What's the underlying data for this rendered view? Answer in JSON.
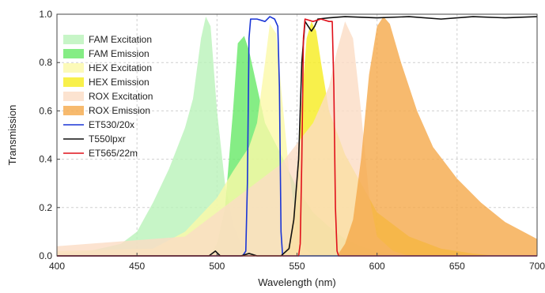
{
  "chart_data": {
    "type": "area",
    "xlabel": "Wavelength (nm)",
    "ylabel": "Transmission",
    "xlim": [
      400,
      700
    ],
    "ylim": [
      0,
      1.0
    ],
    "x_ticks": [
      400,
      450,
      500,
      550,
      600,
      650,
      700
    ],
    "y_ticks": [
      "0.0",
      "0.2",
      "0.4",
      "0.6",
      "0.8",
      "1.0"
    ],
    "grid": "dashed",
    "legend_position": "top-left",
    "series": [
      {
        "name": "FAM Excitation",
        "kind": "area",
        "color": "#b9f2b9",
        "points": [
          [
            400,
            0.01
          ],
          [
            420,
            0.02
          ],
          [
            440,
            0.05
          ],
          [
            450,
            0.1
          ],
          [
            460,
            0.22
          ],
          [
            470,
            0.36
          ],
          [
            480,
            0.53
          ],
          [
            485,
            0.65
          ],
          [
            490,
            0.9
          ],
          [
            493,
            0.99
          ],
          [
            496,
            0.95
          ],
          [
            500,
            0.6
          ],
          [
            505,
            0.3
          ],
          [
            510,
            0.13
          ],
          [
            515,
            0.05
          ],
          [
            520,
            0.02
          ],
          [
            530,
            0.0
          ]
        ]
      },
      {
        "name": "FAM Emission",
        "kind": "area",
        "color": "#66e866",
        "points": [
          [
            495,
            0.0
          ],
          [
            500,
            0.05
          ],
          [
            505,
            0.2
          ],
          [
            510,
            0.6
          ],
          [
            513,
            0.88
          ],
          [
            517,
            0.91
          ],
          [
            520,
            0.85
          ],
          [
            525,
            0.7
          ],
          [
            530,
            0.55
          ],
          [
            540,
            0.42
          ],
          [
            550,
            0.28
          ],
          [
            560,
            0.18
          ],
          [
            570,
            0.12
          ],
          [
            580,
            0.07
          ],
          [
            590,
            0.04
          ],
          [
            600,
            0.02
          ],
          [
            620,
            0.0
          ]
        ]
      },
      {
        "name": "HEX Excitation",
        "kind": "area",
        "color": "#fbf9a8",
        "points": [
          [
            400,
            0.02
          ],
          [
            460,
            0.03
          ],
          [
            480,
            0.1
          ],
          [
            500,
            0.24
          ],
          [
            510,
            0.35
          ],
          [
            520,
            0.45
          ],
          [
            525,
            0.55
          ],
          [
            530,
            0.8
          ],
          [
            533,
            0.96
          ],
          [
            537,
            0.92
          ],
          [
            540,
            0.7
          ],
          [
            545,
            0.35
          ],
          [
            550,
            0.12
          ],
          [
            555,
            0.03
          ],
          [
            560,
            0.0
          ]
        ]
      },
      {
        "name": "HEX Emission",
        "kind": "area",
        "color": "#f6ec1e",
        "points": [
          [
            540,
            0.0
          ],
          [
            545,
            0.05
          ],
          [
            550,
            0.3
          ],
          [
            553,
            0.65
          ],
          [
            556,
            0.9
          ],
          [
            559,
            0.97
          ],
          [
            562,
            0.93
          ],
          [
            565,
            0.8
          ],
          [
            570,
            0.6
          ],
          [
            580,
            0.42
          ],
          [
            590,
            0.3
          ],
          [
            600,
            0.18
          ],
          [
            620,
            0.08
          ],
          [
            640,
            0.03
          ],
          [
            660,
            0.01
          ],
          [
            675,
            0.0
          ]
        ]
      },
      {
        "name": "ROX Excitation",
        "kind": "area",
        "color": "#fbdcc4",
        "points": [
          [
            400,
            0.04
          ],
          [
            480,
            0.08
          ],
          [
            500,
            0.18
          ],
          [
            520,
            0.28
          ],
          [
            540,
            0.38
          ],
          [
            560,
            0.55
          ],
          [
            570,
            0.7
          ],
          [
            575,
            0.85
          ],
          [
            580,
            0.97
          ],
          [
            585,
            0.9
          ],
          [
            590,
            0.6
          ],
          [
            595,
            0.25
          ],
          [
            600,
            0.08
          ],
          [
            610,
            0.02
          ],
          [
            620,
            0.0
          ]
        ]
      },
      {
        "name": "ROX Emission",
        "kind": "area",
        "color": "#f5a94a",
        "points": [
          [
            575,
            0.0
          ],
          [
            580,
            0.05
          ],
          [
            585,
            0.15
          ],
          [
            590,
            0.4
          ],
          [
            595,
            0.75
          ],
          [
            600,
            0.95
          ],
          [
            604,
            0.99
          ],
          [
            608,
            0.96
          ],
          [
            615,
            0.8
          ],
          [
            625,
            0.6
          ],
          [
            635,
            0.45
          ],
          [
            650,
            0.32
          ],
          [
            665,
            0.22
          ],
          [
            680,
            0.14
          ],
          [
            700,
            0.07
          ]
        ]
      },
      {
        "name": "ET530/20x",
        "kind": "line",
        "color": "#1a35d6",
        "points": [
          [
            400,
            0.0
          ],
          [
            516,
            0.0
          ],
          [
            518,
            0.02
          ],
          [
            519,
            0.3
          ],
          [
            520,
            0.9
          ],
          [
            521,
            0.98
          ],
          [
            525,
            0.98
          ],
          [
            530,
            0.97
          ],
          [
            533,
            0.99
          ],
          [
            536,
            0.98
          ],
          [
            538,
            0.95
          ],
          [
            539,
            0.7
          ],
          [
            540,
            0.1
          ],
          [
            541,
            0.0
          ],
          [
            700,
            0.0
          ]
        ]
      },
      {
        "name": "T550lpxr",
        "kind": "line",
        "color": "#111111",
        "points": [
          [
            400,
            0.0
          ],
          [
            495,
            0.0
          ],
          [
            499,
            0.02
          ],
          [
            502,
            0.0
          ],
          [
            515,
            0.0
          ],
          [
            520,
            0.01
          ],
          [
            525,
            0.0
          ],
          [
            540,
            0.0
          ],
          [
            545,
            0.03
          ],
          [
            548,
            0.15
          ],
          [
            551,
            0.4
          ],
          [
            553,
            0.8
          ],
          [
            555,
            0.97
          ],
          [
            557,
            0.95
          ],
          [
            559,
            0.93
          ],
          [
            561,
            0.95
          ],
          [
            563,
            0.98
          ],
          [
            570,
            0.985
          ],
          [
            580,
            0.99
          ],
          [
            600,
            0.985
          ],
          [
            620,
            0.99
          ],
          [
            640,
            0.98
          ],
          [
            660,
            0.99
          ],
          [
            680,
            0.985
          ],
          [
            700,
            0.99
          ]
        ]
      },
      {
        "name": "ET565/22m",
        "kind": "line",
        "color": "#e0101a",
        "points": [
          [
            400,
            0.0
          ],
          [
            551,
            0.0
          ],
          [
            552,
            0.05
          ],
          [
            553,
            0.4
          ],
          [
            554,
            0.9
          ],
          [
            555,
            0.98
          ],
          [
            560,
            0.97
          ],
          [
            565,
            0.98
          ],
          [
            570,
            0.97
          ],
          [
            572,
            0.97
          ],
          [
            573,
            0.7
          ],
          [
            574,
            0.2
          ],
          [
            575,
            0.02
          ],
          [
            576,
            0.0
          ],
          [
            700,
            0.0
          ]
        ]
      }
    ]
  }
}
